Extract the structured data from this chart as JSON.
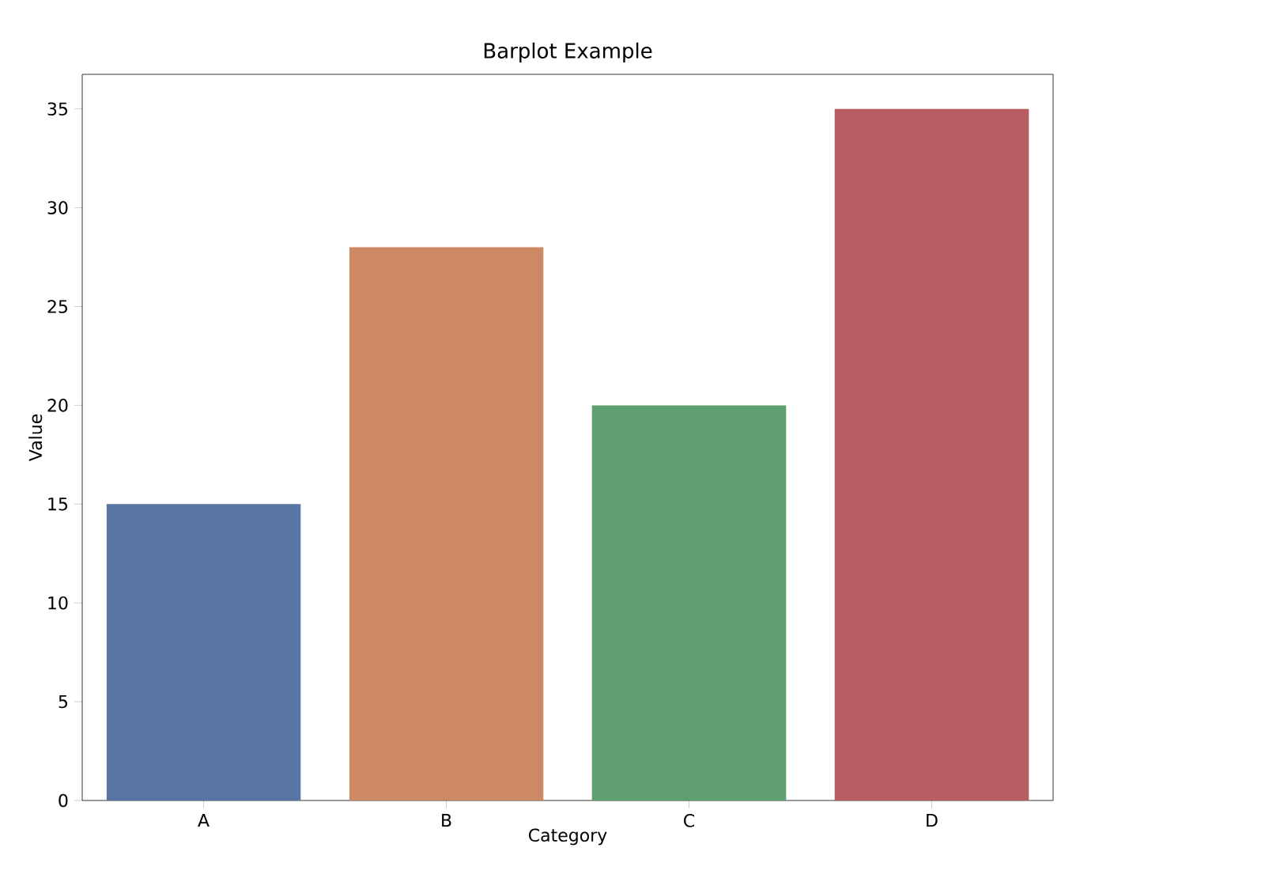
{
  "chart_data": {
    "type": "bar",
    "title": "Barplot Example",
    "xlabel": "Category",
    "ylabel": "Value",
    "categories": [
      "A",
      "B",
      "C",
      "D"
    ],
    "values": [
      15,
      28,
      20,
      35
    ],
    "colors": [
      "#5975a4",
      "#cc8963",
      "#5f9e6e",
      "#b55d60"
    ],
    "ylim": [
      0,
      36.75
    ],
    "yticks": [
      0,
      5,
      10,
      15,
      20,
      25,
      30,
      35
    ]
  }
}
